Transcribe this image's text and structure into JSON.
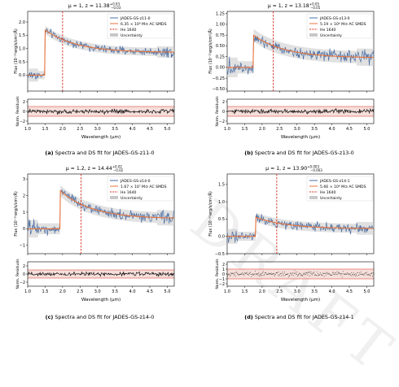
{
  "colors": {
    "data": "#4a6fa5",
    "fit": "#e8733a",
    "he_line": "#d7301f",
    "uncertainty": "#c8c8c8",
    "resid_band": "#f2d2cc"
  },
  "watermark": "DRAFT",
  "chart_data": [
    {
      "type": "line",
      "panel_id": "a",
      "title_mu": "μ = 1",
      "title_z": "z = 11.38",
      "title_z_up": "+0.03",
      "title_z_lo": "−0.03",
      "caption_label": "(a)",
      "caption_text": "Spectra and DS fit for JADES-GS-z11-0",
      "ylabel_top": "Flux (10⁻²⁰erg/s/cm²/Å)",
      "ylabel_bottom": "Norm. Residuals",
      "xlabel": "Wavelength (μm)",
      "xlim": [
        1.0,
        5.2
      ],
      "xticks": [
        "1.0",
        "1.5",
        "2.0",
        "2.5",
        "3.0",
        "3.5",
        "4.0",
        "4.5",
        "5.0"
      ],
      "ylim": [
        -0.6,
        2.4
      ],
      "yticks": [
        "0.0",
        "0.5",
        "1.0",
        "1.5",
        "2.0"
      ],
      "resid_ylim": [
        -2.5,
        2.5
      ],
      "resid_yticks": [
        "2",
        "0",
        "−2"
      ],
      "he_line_x": 2.0,
      "break_x": 1.5,
      "peak": 1.7,
      "tail": 0.85,
      "noise": 0.14,
      "legend": [
        "JADES-GS-z11-0",
        "6.35 × 10⁶ M⊙ AC SMDS",
        "He 1640",
        "Uncertainty"
      ]
    },
    {
      "type": "line",
      "panel_id": "b",
      "title_mu": "μ = 1",
      "title_z": "z = 13.18",
      "title_z_up": "+0.05",
      "title_z_lo": "−0.05",
      "caption_label": "(b)",
      "caption_text": "Spectra and DS fit for JADES-GS-z13-0",
      "ylabel_top": "Flux (10⁻²⁰erg/s/cm²/Å)",
      "ylabel_bottom": "Norm. Residuals",
      "xlabel": "Wavelength (μm)",
      "xlim": [
        1.0,
        5.2
      ],
      "xticks": [
        "1.0",
        "1.5",
        "2.0",
        "2.5",
        "3.0",
        "3.5",
        "4.0",
        "4.5",
        "5.0"
      ],
      "ylim": [
        -0.55,
        1.3
      ],
      "yticks": [
        "−0.50",
        "−0.25",
        "0.00",
        "0.25",
        "0.50",
        "0.75",
        "1.00",
        "1.25"
      ],
      "resid_ylim": [
        -2.5,
        2.5
      ],
      "resid_yticks": [
        "2",
        "0",
        "−2"
      ],
      "he_line_x": 2.32,
      "break_x": 1.75,
      "peak": 0.75,
      "tail": 0.22,
      "noise": 0.13,
      "legend": [
        "JADES-GS-z13-0",
        "5.19 × 10⁶ M⊙ AC SMDS",
        "He 1640",
        "Uncertainty"
      ]
    },
    {
      "type": "line",
      "panel_id": "c",
      "title_mu": "μ = 1.2",
      "title_z": "z = 14.44",
      "title_z_up": "+0.02",
      "title_z_lo": "−0.02",
      "caption_label": "(c)",
      "caption_text": "Spectra and DS fit for JADES-GS-z14-0",
      "ylabel_top": "Flux (10⁻²⁰erg/s/cm²/Å)",
      "ylabel_bottom": "Norm. Residuals",
      "xlabel": "Wavelength (μm)",
      "xlim": [
        1.0,
        5.2
      ],
      "xticks": [
        "1.0",
        "1.5",
        "2.0",
        "2.5",
        "3.0",
        "3.5",
        "4.0",
        "4.5",
        "5.0"
      ],
      "ylim": [
        -1.5,
        3.3
      ],
      "yticks": [
        "−1",
        "0",
        "1",
        "2",
        "3"
      ],
      "resid_ylim": [
        -3,
        3
      ],
      "resid_yticks": [
        "2",
        "0",
        "−2"
      ],
      "he_line_x": 2.53,
      "break_x": 1.93,
      "peak": 2.3,
      "tail": 0.6,
      "noise": 0.3,
      "legend": [
        "JADES-GS-z14-0",
        "1.67 × 10⁷ M⊙ AC SMDS",
        "He 1640",
        "Uncertainty"
      ]
    },
    {
      "type": "line",
      "panel_id": "d",
      "title_mu": "μ = 1",
      "title_z": "z = 13.90",
      "title_z_up": "+0.003",
      "title_z_lo": "−0.003",
      "caption_label": "(d)",
      "caption_text": "Spectra and DS fit for JADES-GS-z14-1",
      "ylabel_top": "Flux (10⁻²⁰erg/s/cm²/Å)",
      "ylabel_bottom": "Norm. Residuals",
      "xlabel": "Wavelength (μm)",
      "xlim": [
        1.0,
        5.2
      ],
      "xticks": [
        "1.0",
        "1.5",
        "2.0",
        "2.5",
        "3.0",
        "3.5",
        "4.0",
        "4.5",
        "5.0"
      ],
      "ylim": [
        -0.5,
        1.8
      ],
      "yticks": [
        "−0.5",
        "0.0",
        "0.5",
        "1.0",
        "1.5"
      ],
      "resid_ylim": [
        -2.5,
        2.5
      ],
      "resid_yticks": [
        "2",
        "1",
        "0",
        "−1",
        "−2"
      ],
      "he_line_x": 2.42,
      "break_x": 1.82,
      "peak": 0.55,
      "tail": 0.22,
      "noise": 0.12,
      "legend": [
        "JADES-GS-z14-1",
        "5.66 × 10⁶ M⊙ AC SMDS",
        "He 1640",
        "Uncertainty"
      ]
    }
  ]
}
